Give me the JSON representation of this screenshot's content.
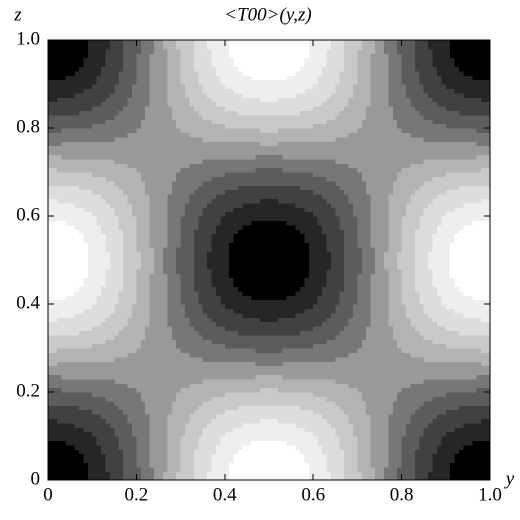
{
  "chart_data": {
    "type": "contour",
    "title": "<T00>(y,z)",
    "x_label": "y",
    "y_label": "z",
    "xlim": [
      0,
      1
    ],
    "ylim": [
      0,
      1
    ],
    "xticks": [
      0,
      0.2,
      0.4,
      0.6,
      0.8,
      {
        "value": 1,
        "label": "1.0"
      }
    ],
    "yticks": [
      0,
      0.2,
      0.4,
      0.6,
      0.8,
      {
        "value": 1,
        "label": "1.0"
      }
    ],
    "x": [
      0,
      0.05,
      0.1,
      0.15,
      0.2,
      0.25,
      0.3,
      0.35,
      0.4,
      0.45,
      0.5,
      0.55,
      0.6,
      0.65,
      0.7,
      0.75,
      0.8,
      0.85,
      0.9,
      0.95,
      1
    ],
    "y": [
      0,
      0.05,
      0.1,
      0.15,
      0.2,
      0.25,
      0.3,
      0.35,
      0.4,
      0.45,
      0.5,
      0.55,
      0.6,
      0.65,
      0.7,
      0.75,
      0.8,
      0.85,
      0.9,
      0.95,
      1
    ],
    "contours": [
      -0.82,
      -0.64,
      -0.45,
      -0.27,
      -0.09,
      0.09,
      0.27,
      0.45,
      0.64,
      0.82
    ],
    "band_colors": [
      "#000000",
      "#262626",
      "#414141",
      "#5c5c5c",
      "#777777",
      "#999999",
      "#b3b3b3",
      "#c9c9c9",
      "#dddddd",
      "#eeeeee",
      "#ffffff"
    ],
    "values": [
      [
        -1,
        -0.95,
        -0.81,
        -0.59,
        -0.31,
        0,
        0.31,
        0.59,
        0.81,
        0.95,
        1,
        0.95,
        0.81,
        0.59,
        0.31,
        0,
        -0.31,
        -0.59,
        -0.81,
        -0.95,
        -1
      ],
      [
        -0.95,
        -0.9,
        -0.77,
        -0.56,
        -0.29,
        0,
        0.29,
        0.56,
        0.77,
        0.9,
        0.95,
        0.9,
        0.77,
        0.56,
        0.29,
        0,
        -0.29,
        -0.56,
        -0.77,
        -0.9,
        -0.95
      ],
      [
        -0.81,
        -0.77,
        -0.65,
        -0.48,
        -0.25,
        0,
        0.25,
        0.48,
        0.65,
        0.77,
        0.81,
        0.77,
        0.65,
        0.48,
        0.25,
        0,
        -0.25,
        -0.48,
        -0.65,
        -0.77,
        -0.81
      ],
      [
        -0.59,
        -0.56,
        -0.48,
        -0.35,
        -0.18,
        0,
        0.18,
        0.35,
        0.48,
        0.56,
        0.59,
        0.56,
        0.48,
        0.35,
        0.18,
        0,
        -0.18,
        -0.35,
        -0.48,
        -0.56,
        -0.59
      ],
      [
        -0.31,
        -0.29,
        -0.25,
        -0.18,
        -0.1,
        0,
        0.1,
        0.18,
        0.25,
        0.29,
        0.31,
        0.29,
        0.25,
        0.18,
        0.1,
        0,
        -0.1,
        -0.18,
        -0.25,
        -0.29,
        -0.31
      ],
      [
        0,
        0,
        0,
        0,
        0,
        0,
        0,
        0,
        0,
        0,
        0,
        0,
        0,
        0,
        0,
        0,
        0,
        0,
        0,
        0,
        0
      ],
      [
        0.31,
        0.29,
        0.25,
        0.18,
        0.1,
        0,
        -0.1,
        -0.18,
        -0.25,
        -0.29,
        -0.31,
        -0.29,
        -0.25,
        -0.18,
        -0.1,
        0,
        0.1,
        0.18,
        0.25,
        0.29,
        0.31
      ],
      [
        0.59,
        0.56,
        0.48,
        0.35,
        0.18,
        0,
        -0.18,
        -0.35,
        -0.48,
        -0.56,
        -0.59,
        -0.56,
        -0.48,
        -0.35,
        -0.18,
        0,
        0.18,
        0.35,
        0.48,
        0.56,
        0.59
      ],
      [
        0.81,
        0.77,
        0.65,
        0.48,
        0.25,
        0,
        -0.25,
        -0.48,
        -0.65,
        -0.77,
        -0.81,
        -0.77,
        -0.65,
        -0.48,
        -0.25,
        0,
        0.25,
        0.48,
        0.65,
        0.77,
        0.81
      ],
      [
        0.95,
        0.9,
        0.77,
        0.56,
        0.29,
        0,
        -0.29,
        -0.56,
        -0.77,
        -0.9,
        -0.95,
        -0.9,
        -0.77,
        -0.56,
        -0.29,
        0,
        0.29,
        0.56,
        0.77,
        0.9,
        0.95
      ],
      [
        1,
        0.95,
        0.81,
        0.59,
        0.31,
        0,
        -0.31,
        -0.59,
        -0.81,
        -0.95,
        -1,
        -0.95,
        -0.81,
        -0.59,
        -0.31,
        0,
        0.31,
        0.59,
        0.81,
        0.95,
        1
      ],
      [
        0.95,
        0.9,
        0.77,
        0.56,
        0.29,
        0,
        -0.29,
        -0.56,
        -0.77,
        -0.9,
        -0.95,
        -0.9,
        -0.77,
        -0.56,
        -0.29,
        0,
        0.29,
        0.56,
        0.77,
        0.9,
        0.95
      ],
      [
        0.81,
        0.77,
        0.65,
        0.48,
        0.25,
        0,
        -0.25,
        -0.48,
        -0.65,
        -0.77,
        -0.81,
        -0.77,
        -0.65,
        -0.48,
        -0.25,
        0,
        0.25,
        0.48,
        0.65,
        0.77,
        0.81
      ],
      [
        0.59,
        0.56,
        0.48,
        0.35,
        0.18,
        0,
        -0.18,
        -0.35,
        -0.48,
        -0.56,
        -0.59,
        -0.56,
        -0.48,
        -0.35,
        -0.18,
        0,
        0.18,
        0.35,
        0.48,
        0.56,
        0.59
      ],
      [
        0.31,
        0.29,
        0.25,
        0.18,
        0.1,
        0,
        -0.1,
        -0.18,
        -0.25,
        -0.29,
        -0.31,
        -0.29,
        -0.25,
        -0.18,
        -0.1,
        0,
        0.1,
        0.18,
        0.25,
        0.29,
        0.31
      ],
      [
        0,
        0,
        0,
        0,
        0,
        0,
        0,
        0,
        0,
        0,
        0,
        0,
        0,
        0,
        0,
        0,
        0,
        0,
        0,
        0,
        0
      ],
      [
        -0.31,
        -0.29,
        -0.25,
        -0.18,
        -0.1,
        0,
        0.1,
        0.18,
        0.25,
        0.29,
        0.31,
        0.29,
        0.25,
        0.18,
        0.1,
        0,
        -0.1,
        -0.18,
        -0.25,
        -0.29,
        -0.31
      ],
      [
        -0.59,
        -0.56,
        -0.48,
        -0.35,
        -0.18,
        0,
        0.18,
        0.35,
        0.48,
        0.56,
        0.59,
        0.56,
        0.48,
        0.35,
        0.18,
        0,
        -0.18,
        -0.35,
        -0.48,
        -0.56,
        -0.59
      ],
      [
        -0.81,
        -0.77,
        -0.65,
        -0.48,
        -0.25,
        0,
        0.25,
        0.48,
        0.65,
        0.77,
        0.81,
        0.77,
        0.65,
        0.48,
        0.25,
        0,
        -0.25,
        -0.48,
        -0.65,
        -0.77,
        -0.81
      ],
      [
        -0.95,
        -0.9,
        -0.77,
        -0.56,
        -0.29,
        0,
        0.29,
        0.56,
        0.77,
        0.9,
        0.95,
        0.9,
        0.77,
        0.56,
        0.29,
        0,
        -0.29,
        -0.56,
        -0.77,
        -0.9,
        -0.95
      ],
      [
        -1,
        -0.95,
        -0.81,
        -0.59,
        -0.31,
        0,
        0.31,
        0.59,
        0.81,
        0.95,
        1,
        0.95,
        0.81,
        0.59,
        0.31,
        0,
        -0.31,
        -0.59,
        -0.81,
        -0.95,
        -1
      ]
    ]
  }
}
